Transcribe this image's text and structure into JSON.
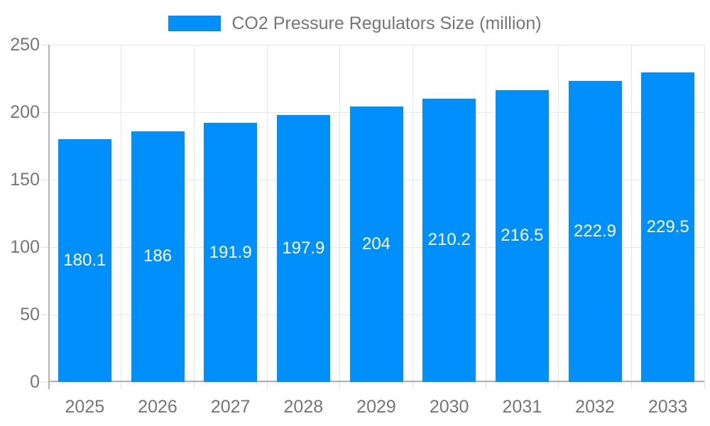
{
  "chart_data": {
    "type": "bar",
    "title": "CO2 Pressure Regulators Size (million)",
    "categories": [
      "2025",
      "2026",
      "2027",
      "2028",
      "2029",
      "2030",
      "2031",
      "2032",
      "2033"
    ],
    "series": [
      {
        "name": "CO2 Pressure Regulators Size (million)",
        "values": [
          180.1,
          186,
          191.9,
          197.9,
          204,
          210.2,
          216.5,
          222.9,
          229.5
        ]
      }
    ],
    "value_labels": [
      "180.1",
      "186",
      "191.9",
      "197.9",
      "204",
      "210.2",
      "216.5",
      "222.9",
      "229.5"
    ],
    "xlabel": "",
    "ylabel": "",
    "ylim": [
      0,
      250
    ],
    "yticks": [
      0,
      50,
      100,
      150,
      200,
      250
    ],
    "grid": "on",
    "legend_position": "top-center",
    "colors": {
      "bar": "#008FFB",
      "bar_value_text": "#ffffff",
      "axis_text": "#757575",
      "legend_text": "#757575",
      "gridline": "#e6e6e6",
      "tick_mark": "#e0e0e0",
      "axis_line": "#b3b3b3",
      "background": "#ffffff"
    }
  }
}
